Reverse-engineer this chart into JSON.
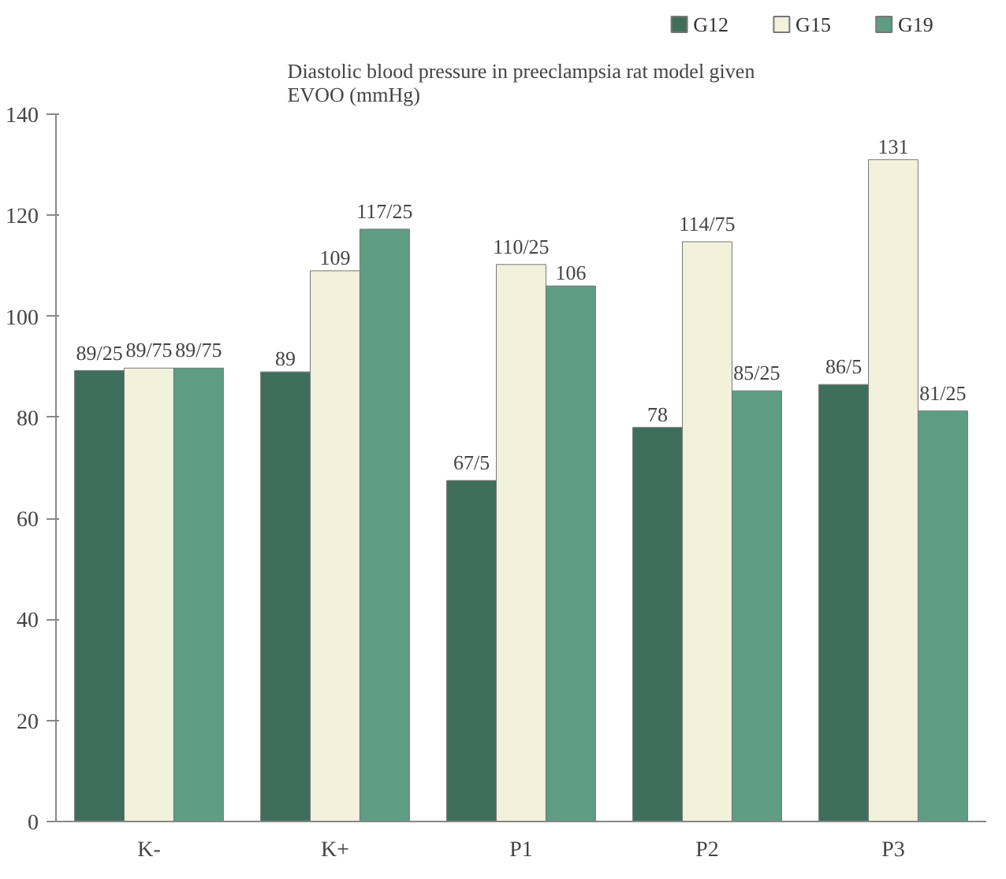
{
  "chart_data": {
    "type": "bar",
    "title": "Diastolic blood pressure in preeclampsia rat model given EVOO (mmHg)",
    "categories": [
      "K-",
      "K+",
      "P1",
      "P2",
      "P3"
    ],
    "series": [
      {
        "name": "G12",
        "color": "#3f6e5c",
        "values": [
          89.25,
          89,
          67.5,
          78,
          86.5
        ],
        "value_labels": [
          "89/25",
          "89",
          "67/5",
          "78",
          "86/5"
        ]
      },
      {
        "name": "G15",
        "color": "#f2f2dc",
        "values": [
          89.75,
          109,
          110.25,
          114.75,
          131
        ],
        "value_labels": [
          "89/75",
          "109",
          "110/25",
          "114/75",
          "131"
        ]
      },
      {
        "name": "G19",
        "color": "#5e9c84",
        "values": [
          89.75,
          117.25,
          106,
          85.25,
          81.25
        ],
        "value_labels": [
          "89/75",
          "117/25",
          "106",
          "85/25",
          "81/25"
        ]
      }
    ],
    "ylim": [
      0,
      140
    ],
    "yticks": [
      0,
      20,
      40,
      60,
      80,
      100,
      120,
      140
    ],
    "grid": false,
    "legend": "top right"
  }
}
